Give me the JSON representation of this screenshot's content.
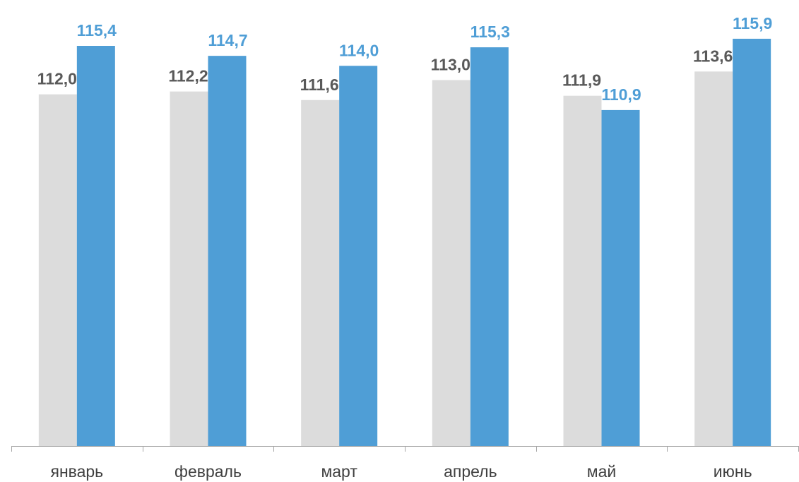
{
  "chart_data": {
    "type": "bar",
    "categories": [
      "январь",
      "февраль",
      "март",
      "апрель",
      "май",
      "июнь"
    ],
    "series": [
      {
        "color": "#dcdcdc",
        "label_color": "#595959",
        "values": [
          112.0,
          112.2,
          111.6,
          113.0,
          111.9,
          113.6
        ],
        "labels": [
          "112,0",
          "112,2",
          "111,6",
          "113,0",
          "111,9",
          "113,6"
        ]
      },
      {
        "color": "#4f9ed6",
        "label_color": "#4f9ed6",
        "values": [
          115.4,
          114.7,
          114.0,
          115.3,
          110.9,
          115.9
        ],
        "labels": [
          "115,4",
          "114,7",
          "114,0",
          "115,3",
          "110,9",
          "115,9"
        ]
      }
    ],
    "title": "",
    "xlabel": "",
    "ylabel": "",
    "axis_color": "#a6a6a6",
    "grid": false,
    "legend": "none"
  }
}
